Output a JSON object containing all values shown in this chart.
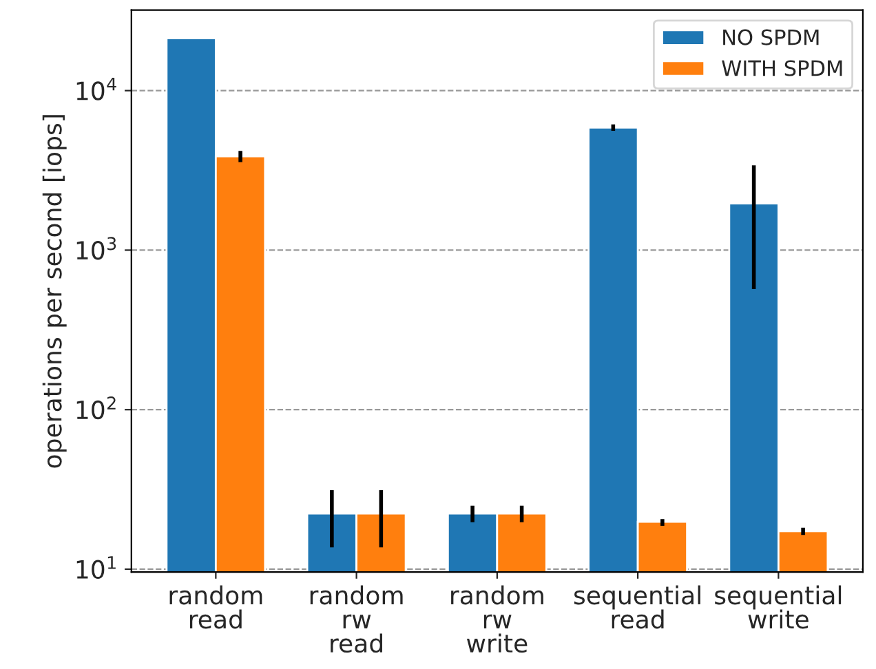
{
  "chart_data": {
    "type": "bar",
    "ylabel": "operations per second [iops]",
    "categories": [
      "random\nread",
      "random\nrw\nread",
      "random\nrw\nwrite",
      "sequential\nread",
      "sequential\nwrite"
    ],
    "series": [
      {
        "name": "NO SPDM",
        "color": "#1f77b4",
        "values": [
          21300,
          22.3,
          22.3,
          5860,
          1960
        ],
        "errors": [
          null,
          [
            13.7,
            31.3
          ],
          [
            19.7,
            25.0
          ],
          [
            5600,
            6140
          ],
          [
            570,
            3400
          ]
        ]
      },
      {
        "name": "WITH SPDM",
        "color": "#ff7f0e",
        "values": [
          3870,
          22.3,
          22.3,
          19.8,
          17.3
        ],
        "errors": [
          [
            3560,
            4190
          ],
          [
            13.7,
            31.3
          ],
          [
            19.7,
            25.0
          ],
          [
            18.7,
            20.6
          ],
          [
            16.4,
            18.2
          ]
        ]
      }
    ],
    "log": true,
    "ylim": [
      9.6,
      32000
    ],
    "yticks": [
      {
        "value": 10,
        "label": "10$^{1}$"
      },
      {
        "value": 100,
        "label": "10$^{2}$"
      },
      {
        "value": 1000,
        "label": "10$^{3}$"
      },
      {
        "value": 10000,
        "label": "10$^{4}$"
      }
    ],
    "grid": "y",
    "legend": "top right"
  }
}
